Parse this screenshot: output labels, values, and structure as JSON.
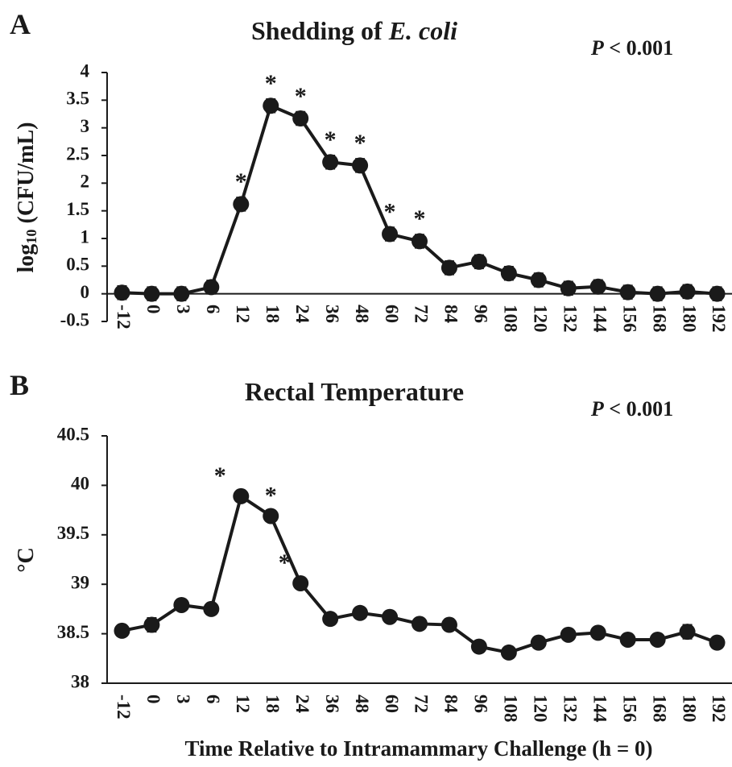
{
  "chart_data": [
    {
      "type": "line",
      "panel": "A",
      "title": [
        {
          "text": "Shedding of "
        },
        {
          "text": "E. coli",
          "italic": true
        }
      ],
      "annotation": [
        {
          "text": "P",
          "italic": true
        },
        {
          "text": " < 0.001"
        }
      ],
      "y_label": [
        {
          "text": "log"
        },
        {
          "text": "10",
          "sub": true
        },
        {
          "text": " (CFU/mL)"
        }
      ],
      "categories": [
        "-12",
        "0",
        "3",
        "6",
        "12",
        "18",
        "24",
        "36",
        "48",
        "60",
        "72",
        "84",
        "96",
        "108",
        "120",
        "132",
        "144",
        "156",
        "168",
        "180",
        "192"
      ],
      "series": [
        {
          "color": "#1a1a1a",
          "values": [
            0.02,
            0,
            0,
            0.12,
            1.62,
            3.4,
            3.17,
            2.38,
            2.32,
            1.08,
            0.95,
            0.47,
            0.58,
            0.37,
            0.25,
            0.1,
            0.13,
            0.03,
            0,
            0.04,
            0
          ],
          "errors": [
            0.12,
            0.12,
            0.12,
            0.12,
            0.12,
            0.12,
            0.12,
            0.12,
            0.12,
            0.12,
            0.12,
            0.12,
            0.12,
            0.12,
            0.12,
            0.12,
            0.12,
            0.12,
            0.12,
            0.12,
            0.12
          ],
          "markers": [
            null,
            null,
            null,
            null,
            "*",
            "*",
            "*",
            "*",
            "*",
            "*",
            "*",
            null,
            null,
            null,
            null,
            null,
            null,
            null,
            null,
            null,
            null
          ]
        }
      ],
      "ylim": [
        -0.5,
        4
      ],
      "yticks": [
        -0.5,
        0,
        0.5,
        1,
        1.5,
        2,
        2.5,
        3,
        3.5,
        4
      ]
    },
    {
      "type": "line",
      "panel": "B",
      "title": [
        {
          "text": "Rectal Temperature"
        }
      ],
      "annotation": [
        {
          "text": "P",
          "italic": true
        },
        {
          "text": " < 0.001"
        }
      ],
      "y_label": [
        {
          "text": "°C"
        }
      ],
      "x_label": "Time Relative to Intramammary Challenge (h = 0)",
      "categories": [
        "-12",
        "0",
        "3",
        "6",
        "12",
        "18",
        "24",
        "36",
        "48",
        "60",
        "72",
        "84",
        "96",
        "108",
        "120",
        "132",
        "144",
        "156",
        "168",
        "180",
        "192"
      ],
      "series": [
        {
          "color": "#1a1a1a",
          "values": [
            38.53,
            38.59,
            38.79,
            38.75,
            39.89,
            39.69,
            39.01,
            38.65,
            38.71,
            38.67,
            38.6,
            38.59,
            38.37,
            38.31,
            38.41,
            38.49,
            38.51,
            38.44,
            38.44,
            38.52,
            38.41
          ],
          "errors": [
            0.05,
            0.07,
            0.05,
            0.05,
            0.05,
            0.05,
            0.05,
            0.05,
            0.05,
            0.05,
            0.05,
            0.05,
            0.05,
            0.05,
            0.05,
            0.05,
            0.05,
            0.05,
            0.05,
            0.07,
            0.05
          ],
          "markers": [
            null,
            null,
            null,
            null,
            "*",
            "*",
            "*",
            null,
            null,
            null,
            null,
            null,
            null,
            null,
            null,
            null,
            null,
            null,
            null,
            null,
            null
          ]
        }
      ],
      "ylim": [
        38,
        40.5
      ],
      "yticks": [
        38,
        38.5,
        39,
        39.5,
        40,
        40.5
      ]
    }
  ]
}
